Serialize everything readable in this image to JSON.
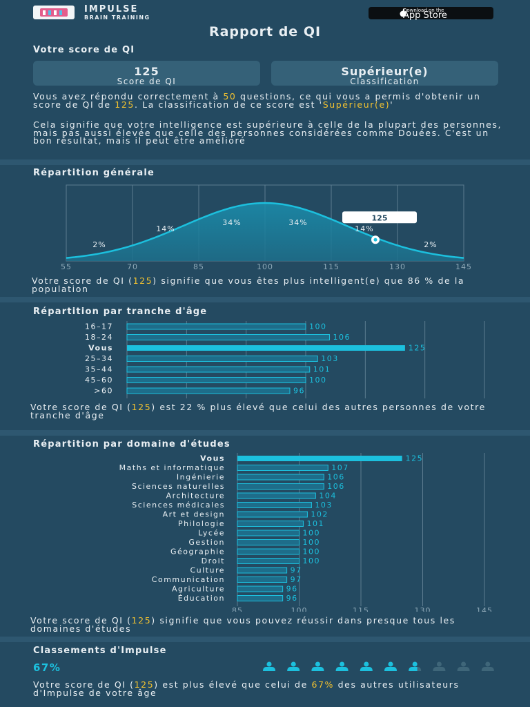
{
  "header": {
    "brand_name": "IMPULSE",
    "brand_tagline": "BRAIN TRAINING",
    "appstore_small": "Download on the",
    "appstore_big": "App Store",
    "logo_icon": "impulse-logo-icon"
  },
  "page_title": "Rapport de QI",
  "score_section": {
    "title": "Votre score de QI",
    "score_value": "125",
    "score_label": "Score de QI",
    "class_value": "Supérieur(e)",
    "class_label": "Classification",
    "para1": {
      "t1": "Vous avez répondu correctement à ",
      "questions": "50",
      "t2": " questions, ce qui vous a permis d'obtenir un score de QI de ",
      "score": "125",
      "t3": ". La classification de ce score est '",
      "classification": "Supérieur(e)",
      "t4": "'"
    },
    "para2": "Cela signifie que votre intelligence est supérieure à celle de la plupart des personnes, mais pas aussi élevée que celle des personnes considérées comme Douées. C'est un bon résultat, mais il peut être amélioré"
  },
  "general": {
    "title": "Répartition générale",
    "caption": {
      "t1": "Votre score de QI (",
      "score": "125",
      "t2": ") signifie que vous êtes plus intelligent(e) que 86 % de la population"
    }
  },
  "age": {
    "title": "Répartition par tranche d'âge",
    "caption": {
      "t1": "Votre score de QI (",
      "score": "125",
      "t2": ") est 22 % plus élevé que celui des autres personnes de votre tranche d'âge"
    }
  },
  "domain": {
    "title": "Répartition par domaine d'études",
    "caption": {
      "t1": "Votre score de QI (",
      "score": "125",
      "t2": ") signifie que vous pouvez réussir dans presque tous les domaines d'études"
    }
  },
  "ranking": {
    "title": "Classements d'Impulse",
    "percent": "67%",
    "people_filled": 6.67,
    "people_total": 10,
    "caption": {
      "t1": "Votre score de QI (",
      "score": "125",
      "t2": ") est plus élevé que celui de ",
      "pct": "67%",
      "t3": " des autres utilisateurs d'Impulse de votre âge"
    }
  },
  "colors": {
    "bg": "#244a61",
    "accent": "#f2c230",
    "cyan": "#1cc0de",
    "bar_fill": "#1e6d8a"
  },
  "chart_data": [
    {
      "type": "area",
      "x_ticks": [
        55,
        70,
        85,
        100,
        115,
        130,
        145
      ],
      "xlim": [
        55,
        145
      ],
      "segments": [
        {
          "label": "2%",
          "range": [
            55,
            70
          ]
        },
        {
          "label": "14%",
          "range": [
            70,
            85
          ]
        },
        {
          "label": "34%",
          "range": [
            85,
            100
          ]
        },
        {
          "label": "34%",
          "range": [
            100,
            115
          ]
        },
        {
          "label": "14%",
          "range": [
            115,
            130
          ]
        },
        {
          "label": "2%",
          "range": [
            130,
            145
          ]
        }
      ],
      "marker": {
        "x": 125,
        "label": "125"
      },
      "grid": true
    },
    {
      "type": "bar",
      "orientation": "horizontal",
      "categories": [
        "16–17",
        "18–24",
        "Vous",
        "25–34",
        "35–44",
        "45–60",
        ">60"
      ],
      "values": [
        100,
        106,
        125,
        103,
        101,
        100,
        96
      ],
      "highlight": "Vous",
      "x_ticks": [
        55,
        70,
        85,
        100,
        115,
        130,
        145
      ],
      "xlim": [
        55,
        145
      ],
      "grid": true
    },
    {
      "type": "bar",
      "orientation": "horizontal",
      "categories": [
        "Vous",
        "Maths et informatique",
        "Ingénierie",
        "Sciences naturelles",
        "Architecture",
        "Sciences médicales",
        "Art et design",
        "Philologie",
        "Lycée",
        "Gestion",
        "Géographie",
        "Droit",
        "Culture",
        "Communication",
        "Agriculture",
        "Éducation"
      ],
      "values": [
        125,
        107,
        106,
        106,
        104,
        103,
        102,
        101,
        100,
        100,
        100,
        100,
        97,
        97,
        96,
        96
      ],
      "highlight": "Vous",
      "x_ticks": [
        85,
        100,
        115,
        130,
        145
      ],
      "xlim": [
        85,
        145
      ],
      "grid": true
    }
  ]
}
